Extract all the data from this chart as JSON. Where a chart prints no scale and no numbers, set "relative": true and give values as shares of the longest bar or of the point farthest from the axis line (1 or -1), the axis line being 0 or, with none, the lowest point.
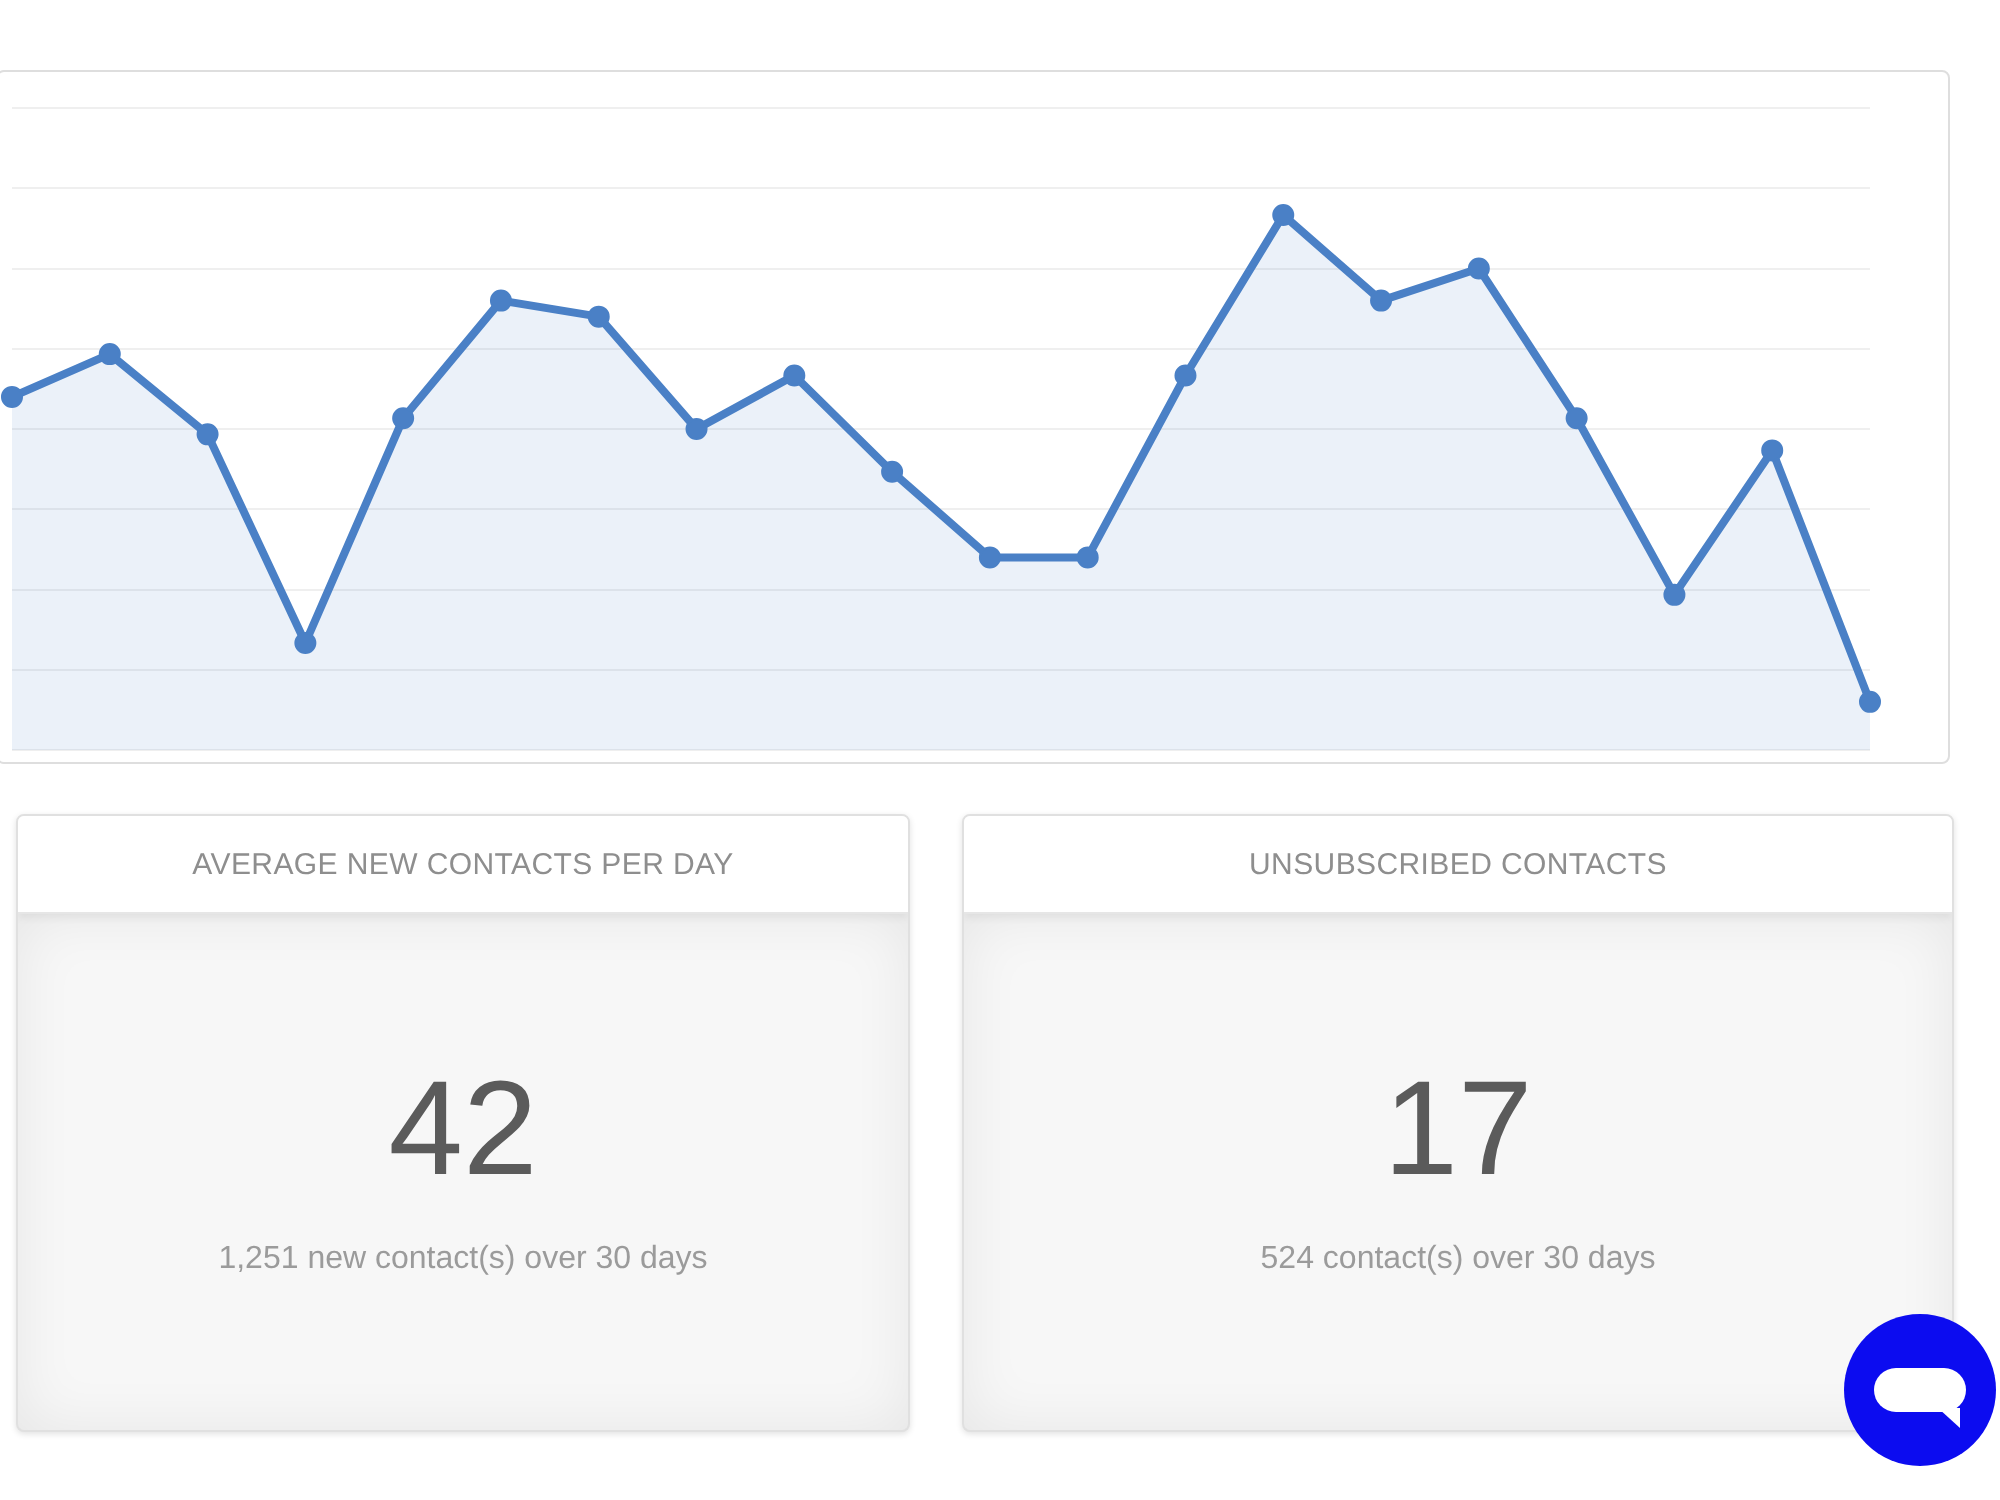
{
  "chart_data": [
    {
      "type": "area",
      "relative": true,
      "categories": [
        null,
        null,
        null,
        null,
        null,
        null,
        null,
        null,
        null,
        null,
        null,
        null,
        null,
        null,
        null,
        null,
        null,
        null,
        null,
        null
      ],
      "series": [
        {
          "color": "#4a80c6",
          "values": [
            0.66,
            0.74,
            0.59,
            0.2,
            0.62,
            0.84,
            0.81,
            0.6,
            0.7,
            0.52,
            0.36,
            0.36,
            0.7,
            1,
            0.84,
            0.9,
            0.62,
            0.29,
            0.56,
            0.09
          ]
        }
      ],
      "grid": "y",
      "marker": "circle",
      "line_style": "solid"
    },
    {
      "type": "other",
      "title": "AVERAGE NEW CONTACTS PER DAY",
      "annotations": [
        "42",
        "1,251 new contact(s) over 30 days"
      ]
    },
    {
      "type": "other",
      "title": "UNSUBSCRIBED CONTACTS",
      "annotations": [
        "17",
        "524 contact(s) over 30 days"
      ]
    }
  ]
}
